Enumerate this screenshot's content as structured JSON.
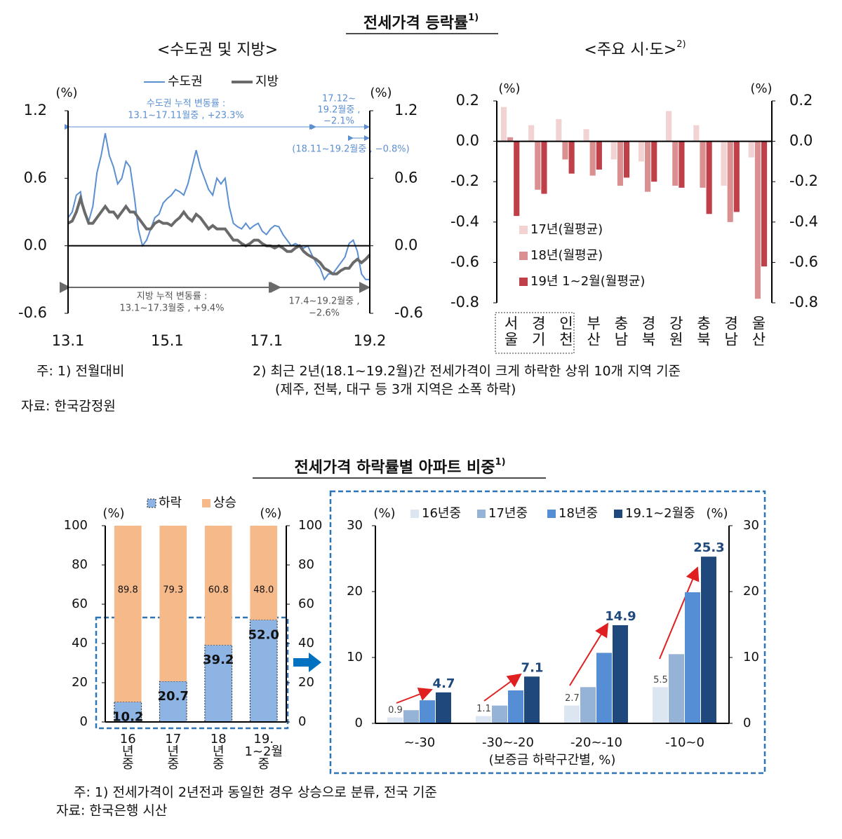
{
  "header": {
    "title": "전세가격 등락률",
    "title_sup": "1)"
  },
  "notes_top": {
    "left": "주: 1) 전월대비",
    "right": [
      "2) 최근 2년(18.1~19.2월)간 전세가격이 크게 하락한 상위 10개 지역 기준",
      "(제주, 전북, 대구 등 3개 지역은 소폭 하락)"
    ],
    "source": "자료: 한국감정원"
  },
  "section2": {
    "title": "전세가격 하락률별 아파트 비중",
    "title_sup": "1)"
  },
  "notes_bottom": [
    "주:  1) 전세가격이 2년전과 동일한 경우 상승으로 분류, 전국 기준",
    "자료: 한국은행 시산"
  ],
  "chart_data": [
    {
      "type": "line",
      "title": "<수도권 및 지방>",
      "y_unit": "(%)",
      "y2_unit": "(%)",
      "legend": "top",
      "categories": [
        "13.1",
        null,
        null,
        null,
        null,
        null,
        null,
        null,
        null,
        null,
        null,
        null,
        null,
        null,
        null,
        null,
        null,
        null,
        null,
        null,
        null,
        null,
        null,
        null,
        "15.1",
        null,
        null,
        null,
        null,
        null,
        null,
        null,
        null,
        null,
        null,
        null,
        null,
        null,
        null,
        null,
        null,
        null,
        null,
        null,
        null,
        null,
        null,
        null,
        "17.1",
        null,
        null,
        null,
        null,
        null,
        null,
        null,
        null,
        null,
        null,
        null,
        null,
        null,
        null,
        null,
        null,
        null,
        null,
        null,
        null,
        null,
        null,
        null,
        null,
        "19.2"
      ],
      "series": [
        {
          "name": "수도권",
          "color": "#5b8fd0",
          "values": [
            0.25,
            0.3,
            0.45,
            0.48,
            0.28,
            0.22,
            0.35,
            0.65,
            0.8,
            1.0,
            0.8,
            0.7,
            0.55,
            0.6,
            0.75,
            0.7,
            0.45,
            0.15,
            0.0,
            0.05,
            0.15,
            0.25,
            0.28,
            0.38,
            0.42,
            0.45,
            0.5,
            0.48,
            0.45,
            0.55,
            0.7,
            0.85,
            0.7,
            0.6,
            0.5,
            0.45,
            0.6,
            0.55,
            0.6,
            0.35,
            0.2,
            0.17,
            0.15,
            0.2,
            0.15,
            0.18,
            0.2,
            0.13,
            0.1,
            0.15,
            0.18,
            0.17,
            0.1,
            0.05,
            0.0,
            0.02,
            0.0,
            -0.02,
            0.0,
            -0.08,
            -0.15,
            -0.2,
            -0.3,
            -0.25,
            -0.25,
            -0.2,
            -0.15,
            -0.1,
            0.02,
            0.05,
            -0.05,
            -0.25,
            -0.3,
            -0.3
          ]
        },
        {
          "name": "지방",
          "color": "#6a6a6a",
          "values": [
            0.2,
            0.22,
            0.3,
            0.42,
            0.3,
            0.2,
            0.2,
            0.25,
            0.3,
            0.35,
            0.3,
            0.3,
            0.25,
            0.3,
            0.35,
            0.3,
            0.3,
            0.25,
            0.2,
            0.15,
            0.15,
            0.2,
            0.22,
            0.2,
            0.2,
            0.18,
            0.22,
            0.25,
            0.3,
            0.25,
            0.22,
            0.28,
            0.25,
            0.2,
            0.15,
            0.18,
            0.15,
            0.15,
            0.15,
            0.1,
            0.05,
            0.05,
            0.02,
            0.0,
            0.02,
            0.05,
            0.05,
            0.02,
            0.0,
            0.0,
            -0.02,
            0.0,
            -0.02,
            -0.05,
            -0.05,
            -0.02,
            0.0,
            -0.05,
            -0.08,
            -0.1,
            -0.12,
            -0.15,
            -0.2,
            -0.22,
            -0.25,
            -0.25,
            -0.22,
            -0.2,
            -0.2,
            -0.15,
            -0.12,
            -0.15,
            -0.12,
            -0.08
          ]
        }
      ],
      "ylim": [
        -0.6,
        1.2
      ],
      "yticks": [
        -0.6,
        {
          "value": 0,
          "label": "0.0"
        },
        0.6,
        1.2
      ],
      "y2lim": [
        -0.6,
        1.2
      ],
      "y2ticks": [
        -0.6,
        {
          "value": 0,
          "label": "0.0"
        },
        0.6,
        1.2
      ],
      "annotations": [
        "수도권 누적 변동률 :",
        "13.1~17.11월중 , +23.3%",
        "17.12~",
        "19.2월중 ,",
        "−2.1%",
        "(18.11~19.2월중 , −0.8%)",
        "지방 누적 변동률 :",
        "13.1~17.3월중 , +9.4%",
        "17.4~19.2월중 ,",
        "−2.6%"
      ]
    },
    {
      "type": "bar",
      "title": "<주요 시·도>",
      "title_sup": "2)",
      "y_unit": "(%)",
      "y2_unit": "(%)",
      "legend": "lower left",
      "categories": [
        "서울",
        "경기",
        "인천",
        "부산",
        "충남",
        "경북",
        "강원",
        "충북",
        "경남",
        "울산"
      ],
      "series": [
        {
          "name": "17년(월평균)",
          "color": "#f2d3d3",
          "values": [
            0.17,
            0.08,
            0.11,
            0.06,
            -0.09,
            -0.1,
            0.15,
            0.08,
            -0.22,
            -0.08
          ]
        },
        {
          "name": "18년(월평균)",
          "color": "#da9090",
          "values": [
            0.02,
            -0.24,
            -0.09,
            -0.17,
            -0.22,
            -0.25,
            -0.22,
            -0.23,
            -0.4,
            -0.78
          ]
        },
        {
          "name": "19년 1~2월(월평균)",
          "color": "#c0404a",
          "values": [
            -0.37,
            -0.26,
            -0.16,
            -0.14,
            -0.18,
            -0.2,
            -0.23,
            -0.36,
            -0.35,
            -0.62
          ]
        }
      ],
      "ylim": [
        -0.8,
        0.2
      ],
      "yticks": [
        -0.8,
        -0.6,
        -0.4,
        -0.2,
        {
          "value": 0,
          "label": "0.0"
        },
        0.2
      ],
      "y2lim": [
        -0.8,
        0.2
      ],
      "y2ticks": [
        -0.8,
        -0.6,
        -0.4,
        -0.2,
        {
          "value": 0,
          "label": "0.0"
        },
        0.2
      ]
    },
    {
      "type": "stacked_bar",
      "y_unit": "(%)",
      "y2_unit": "(%)",
      "legend": "top",
      "categories": [
        [
          "16",
          "년",
          "중"
        ],
        [
          "17",
          "년",
          "중"
        ],
        [
          "18",
          "년",
          "중"
        ],
        [
          "19.",
          "1~2월",
          "중"
        ]
      ],
      "series": [
        {
          "name": "하락",
          "color": "#8db4e2",
          "values": [
            10.2,
            20.7,
            39.2,
            52.0
          ],
          "value_labels": [
            "10.2",
            "20.7",
            "39.2",
            "52.0"
          ]
        },
        {
          "name": "상승",
          "color": "#f6b98a",
          "values": [
            89.8,
            79.3,
            60.8,
            48.0
          ],
          "value_labels": [
            "89.8",
            "79.3",
            "60.8",
            "48.0"
          ]
        }
      ],
      "ylim": [
        0,
        100
      ],
      "yticks": [
        0,
        20,
        40,
        60,
        80,
        100
      ],
      "y2lim": [
        0,
        100
      ],
      "y2ticks": [
        0,
        20,
        40,
        60,
        80,
        100
      ]
    },
    {
      "type": "bar",
      "y_unit": "(%)",
      "y2_unit": "(%)",
      "legend": "top",
      "x_label": "(보증금 하락구간별, %)",
      "categories": [
        "~-30",
        "-30~-20",
        "-20~-10",
        "-10~0"
      ],
      "series": [
        {
          "name": "16년중",
          "color": "#dce6f2",
          "values": [
            0.9,
            1.1,
            2.7,
            5.5
          ],
          "show_labels": true
        },
        {
          "name": "17년중",
          "color": "#95b3d7",
          "values": [
            2.0,
            2.7,
            5.5,
            10.5
          ]
        },
        {
          "name": "18년중",
          "color": "#558ed5",
          "values": [
            3.5,
            5.0,
            10.7,
            19.9
          ]
        },
        {
          "name": "19.1~2월중",
          "color": "#1f497d",
          "values": [
            4.7,
            7.1,
            14.9,
            25.3
          ],
          "show_labels": true
        }
      ],
      "ylim": [
        0,
        30
      ],
      "yticks": [
        0,
        10,
        20,
        30
      ],
      "y2lim": [
        0,
        30
      ],
      "y2ticks": [
        0,
        10,
        20,
        30
      ]
    }
  ]
}
